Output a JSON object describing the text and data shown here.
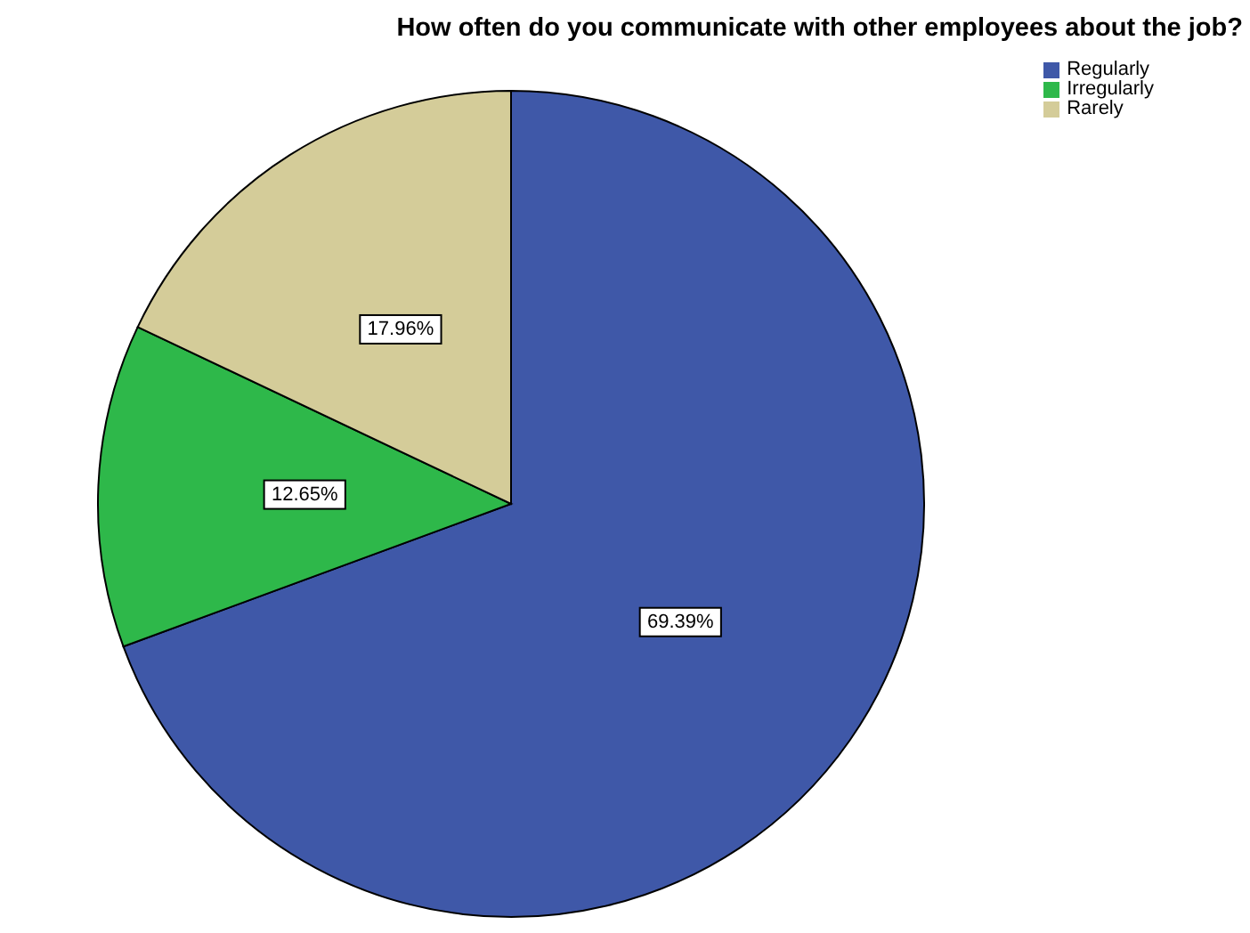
{
  "chart_data": {
    "type": "pie",
    "title": "How often do you communicate with other employees about the job?",
    "categories": [
      "Regularly",
      "Irregularly",
      "Rarely"
    ],
    "values": [
      69.39,
      12.65,
      17.96
    ],
    "value_labels": [
      "69.39%",
      "12.65%",
      "17.96%"
    ],
    "colors": [
      "#3f58a8",
      "#2eb84a",
      "#d4cc99"
    ],
    "legend": "top right"
  }
}
